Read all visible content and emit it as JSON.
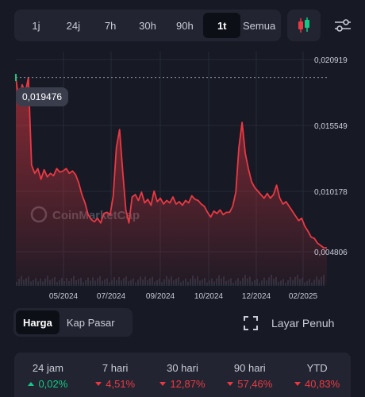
{
  "time_ranges": [
    {
      "label": "1j"
    },
    {
      "label": "24j"
    },
    {
      "label": "7h"
    },
    {
      "label": "30h"
    },
    {
      "label": "90h"
    },
    {
      "label": "1t",
      "active": true
    },
    {
      "label": "Semua"
    }
  ],
  "watermark": "CoinMarketCap",
  "price_badge": "0,019476",
  "colors": {
    "up": "#16c784",
    "down": "#ea3943",
    "background": "#171924",
    "panel": "#222531"
  },
  "view_toggle": {
    "harga": "Harga",
    "kap_pasar": "Kap Pasar"
  },
  "fullscreen_label": "Layar Penuh",
  "chart_data": {
    "type": "area",
    "y_ticks": [
      "0,020919",
      "0,015549",
      "0,010178",
      "0,004806"
    ],
    "x_ticks": [
      "05/2024",
      "07/2024",
      "09/2024",
      "10/2024",
      "12/2024",
      "02/2025"
    ],
    "ylim": [
      0.004806,
      0.020919
    ],
    "grid": true,
    "series": [
      {
        "values": [
          0.0194,
          0.0172,
          0.0188,
          0.0181,
          0.0194,
          0.012,
          0.0113,
          0.0117,
          0.0108,
          0.0116,
          0.011,
          0.0113,
          0.0111,
          0.0117,
          0.0114,
          0.0115,
          0.0117,
          0.0113,
          0.0115,
          0.0112,
          0.0105,
          0.0095,
          0.0088,
          0.0078,
          0.0074,
          0.0072,
          0.0075,
          0.0071,
          0.0079,
          0.008,
          0.0078,
          0.0094,
          0.0135,
          0.015,
          0.0115,
          0.0082,
          0.0071,
          0.0093,
          0.0095,
          0.009,
          0.0097,
          0.0088,
          0.0091,
          0.0086,
          0.0098,
          0.0089,
          0.0092,
          0.0087,
          0.009,
          0.0088,
          0.0093,
          0.0087,
          0.0089,
          0.0086,
          0.009,
          0.0088,
          0.0094,
          0.0091,
          0.009,
          0.0087,
          0.0085,
          0.008,
          0.0076,
          0.0081,
          0.0079,
          0.0082,
          0.0078,
          0.008,
          0.008,
          0.0085,
          0.0097,
          0.0135,
          0.0156,
          0.013,
          0.0117,
          0.0106,
          0.0101,
          0.0098,
          0.0095,
          0.0092,
          0.0096,
          0.0092,
          0.0095,
          0.0103,
          0.0092,
          0.0087,
          0.0089,
          0.0085,
          0.0081,
          0.0077,
          0.0073,
          0.0075,
          0.0068,
          0.0064,
          0.0059,
          0.0058,
          0.0054,
          0.0052,
          0.005,
          0.005
        ]
      }
    ]
  },
  "stats": [
    {
      "label": "24 jam",
      "value": "0,02%",
      "dir": "up"
    },
    {
      "label": "7 hari",
      "value": "4,51%",
      "dir": "down"
    },
    {
      "label": "30 hari",
      "value": "12,87%",
      "dir": "down"
    },
    {
      "label": "90 hari",
      "value": "57,46%",
      "dir": "down"
    },
    {
      "label": "YTD",
      "value": "40,83%",
      "dir": "down"
    }
  ]
}
